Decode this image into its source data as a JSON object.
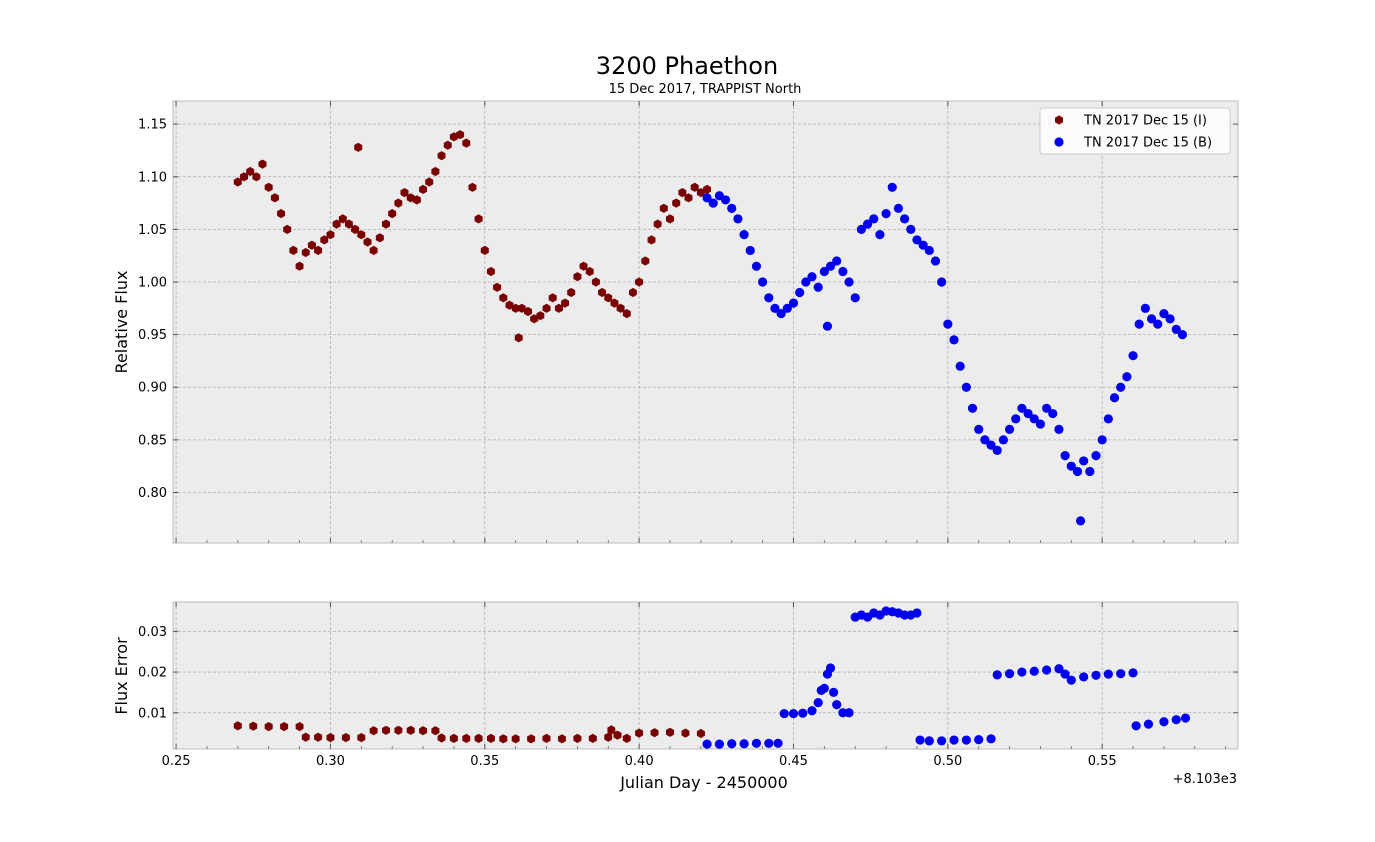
{
  "chart_data": {
    "title": "3200 Phaethon",
    "subtitle": "15 Dec 2017, TRAPPIST North",
    "xlabel": "Julian Day - 2450000",
    "x_offset_label": "+8.103e3",
    "x_offset": 8103,
    "xlim": [
      8103.249,
      8103.594
    ],
    "x_ticks": [
      8103.25,
      8103.3,
      8103.35,
      8103.4,
      8103.45,
      8103.5,
      8103.55
    ],
    "x_tick_labels": [
      "0.25",
      "0.30",
      "0.35",
      "0.40",
      "0.45",
      "0.50",
      "0.55"
    ],
    "grid": true,
    "legend": {
      "placement": "top-right",
      "entries": [
        {
          "label": "TN 2017 Dec 15  (I)",
          "color": "#7a0000",
          "marker": "hexagon"
        },
        {
          "label": "TN 2017 Dec 15  (B)",
          "color": "#0000ee",
          "marker": "circle"
        }
      ]
    },
    "panels": [
      {
        "type": "scatter",
        "ylabel": "Relative  Flux",
        "ylim": [
          0.752,
          1.172
        ],
        "y_ticks": [
          0.8,
          0.85,
          0.9,
          0.95,
          1.0,
          1.05,
          1.1,
          1.15
        ],
        "y_tick_labels": [
          "0.80",
          "0.85",
          "0.90",
          "0.95",
          "1.00",
          "1.05",
          "1.10",
          "1.15"
        ],
        "series": [
          {
            "name": "TN 2017 Dec 15  (I)",
            "color": "#7a0000",
            "marker": "hexagon",
            "x": [
              8103.27,
              8103.272,
              8103.274,
              8103.276,
              8103.278,
              8103.28,
              8103.282,
              8103.284,
              8103.286,
              8103.288,
              8103.29,
              8103.292,
              8103.294,
              8103.296,
              8103.298,
              8103.3,
              8103.302,
              8103.304,
              8103.306,
              8103.308,
              8103.309,
              8103.31,
              8103.312,
              8103.314,
              8103.316,
              8103.318,
              8103.32,
              8103.322,
              8103.324,
              8103.326,
              8103.328,
              8103.33,
              8103.332,
              8103.334,
              8103.336,
              8103.338,
              8103.34,
              8103.342,
              8103.344,
              8103.346,
              8103.348,
              8103.35,
              8103.352,
              8103.354,
              8103.356,
              8103.358,
              8103.36,
              8103.361,
              8103.362,
              8103.364,
              8103.366,
              8103.368,
              8103.37,
              8103.372,
              8103.374,
              8103.376,
              8103.378,
              8103.38,
              8103.382,
              8103.384,
              8103.386,
              8103.388,
              8103.39,
              8103.392,
              8103.394,
              8103.396,
              8103.398,
              8103.4,
              8103.402,
              8103.404,
              8103.406,
              8103.408,
              8103.41,
              8103.412,
              8103.414,
              8103.416,
              8103.418,
              8103.42,
              8103.422
            ],
            "y": [
              1.095,
              1.1,
              1.105,
              1.1,
              1.112,
              1.09,
              1.08,
              1.065,
              1.05,
              1.03,
              1.015,
              1.028,
              1.035,
              1.03,
              1.04,
              1.045,
              1.055,
              1.06,
              1.055,
              1.05,
              1.128,
              1.045,
              1.038,
              1.03,
              1.042,
              1.055,
              1.065,
              1.075,
              1.085,
              1.08,
              1.078,
              1.088,
              1.095,
              1.105,
              1.12,
              1.13,
              1.138,
              1.14,
              1.132,
              1.09,
              1.06,
              1.03,
              1.01,
              0.995,
              0.985,
              0.978,
              0.975,
              0.947,
              0.975,
              0.972,
              0.965,
              0.968,
              0.975,
              0.985,
              0.975,
              0.98,
              0.99,
              1.005,
              1.015,
              1.01,
              1.0,
              0.99,
              0.985,
              0.98,
              0.975,
              0.97,
              0.99,
              1.0,
              1.02,
              1.04,
              1.055,
              1.07,
              1.06,
              1.075,
              1.085,
              1.08,
              1.09,
              1.085,
              1.088
            ]
          },
          {
            "name": "TN 2017 Dec 15  (B)",
            "color": "#0000ee",
            "marker": "circle",
            "x": [
              8103.422,
              8103.424,
              8103.426,
              8103.428,
              8103.43,
              8103.432,
              8103.434,
              8103.436,
              8103.438,
              8103.44,
              8103.442,
              8103.444,
              8103.446,
              8103.448,
              8103.45,
              8103.452,
              8103.454,
              8103.456,
              8103.458,
              8103.46,
              8103.461,
              8103.462,
              8103.464,
              8103.466,
              8103.468,
              8103.47,
              8103.472,
              8103.474,
              8103.476,
              8103.478,
              8103.48,
              8103.482,
              8103.484,
              8103.486,
              8103.488,
              8103.49,
              8103.492,
              8103.494,
              8103.496,
              8103.498,
              8103.5,
              8103.502,
              8103.504,
              8103.506,
              8103.508,
              8103.51,
              8103.512,
              8103.514,
              8103.516,
              8103.518,
              8103.52,
              8103.522,
              8103.524,
              8103.526,
              8103.528,
              8103.53,
              8103.532,
              8103.534,
              8103.536,
              8103.538,
              8103.54,
              8103.542,
              8103.543,
              8103.544,
              8103.546,
              8103.548,
              8103.55,
              8103.552,
              8103.554,
              8103.556,
              8103.558,
              8103.56,
              8103.562,
              8103.564,
              8103.566,
              8103.568,
              8103.57,
              8103.572,
              8103.574,
              8103.576
            ],
            "y": [
              1.08,
              1.075,
              1.082,
              1.078,
              1.07,
              1.06,
              1.045,
              1.03,
              1.015,
              1.0,
              0.985,
              0.975,
              0.97,
              0.975,
              0.98,
              0.99,
              1.0,
              1.005,
              0.995,
              1.01,
              0.958,
              1.015,
              1.02,
              1.01,
              1.0,
              0.985,
              1.05,
              1.055,
              1.06,
              1.045,
              1.065,
              1.09,
              1.07,
              1.06,
              1.05,
              1.04,
              1.035,
              1.03,
              1.02,
              1.0,
              0.96,
              0.945,
              0.92,
              0.9,
              0.88,
              0.86,
              0.85,
              0.845,
              0.84,
              0.85,
              0.86,
              0.87,
              0.88,
              0.875,
              0.87,
              0.865,
              0.88,
              0.875,
              0.86,
              0.835,
              0.825,
              0.82,
              0.773,
              0.83,
              0.82,
              0.835,
              0.85,
              0.87,
              0.89,
              0.9,
              0.91,
              0.93,
              0.96,
              0.975,
              0.965,
              0.96,
              0.97,
              0.965,
              0.955,
              0.95
            ]
          }
        ]
      },
      {
        "type": "scatter",
        "ylabel": "Flux Error",
        "ylim": [
          0.0011,
          0.0372
        ],
        "y_ticks": [
          0.01,
          0.02,
          0.03
        ],
        "y_tick_labels": [
          "0.01",
          "0.02",
          "0.03"
        ],
        "series": [
          {
            "name": "TN 2017 Dec 15  (I)",
            "color": "#7a0000",
            "marker": "hexagon",
            "x": [
              8103.27,
              8103.275,
              8103.28,
              8103.285,
              8103.29,
              8103.292,
              8103.296,
              8103.3,
              8103.305,
              8103.31,
              8103.314,
              8103.318,
              8103.322,
              8103.326,
              8103.33,
              8103.334,
              8103.336,
              8103.34,
              8103.344,
              8103.348,
              8103.352,
              8103.356,
              8103.36,
              8103.365,
              8103.37,
              8103.375,
              8103.38,
              8103.385,
              8103.39,
              8103.391,
              8103.393,
              8103.396,
              8103.4,
              8103.405,
              8103.41,
              8103.415,
              8103.42
            ],
            "y": [
              0.0068,
              0.0067,
              0.0066,
              0.0066,
              0.0066,
              0.004,
              0.004,
              0.0039,
              0.0039,
              0.0039,
              0.0056,
              0.0057,
              0.0057,
              0.0057,
              0.0056,
              0.0056,
              0.0038,
              0.0037,
              0.0037,
              0.0037,
              0.0037,
              0.0036,
              0.0036,
              0.0036,
              0.0037,
              0.0036,
              0.0037,
              0.0037,
              0.004,
              0.0058,
              0.0045,
              0.0037,
              0.005,
              0.0051,
              0.0052,
              0.005,
              0.0049
            ]
          },
          {
            "name": "TN 2017 Dec 15  (B)",
            "color": "#0000ee",
            "marker": "circle",
            "x": [
              8103.422,
              8103.426,
              8103.43,
              8103.434,
              8103.438,
              8103.442,
              8103.445,
              8103.447,
              8103.45,
              8103.453,
              8103.456,
              8103.458,
              8103.459,
              8103.46,
              8103.461,
              8103.462,
              8103.463,
              8103.464,
              8103.466,
              8103.468,
              8103.47,
              8103.472,
              8103.474,
              8103.476,
              8103.478,
              8103.48,
              8103.482,
              8103.484,
              8103.486,
              8103.488,
              8103.49,
              8103.491,
              8103.494,
              8103.498,
              8103.502,
              8103.506,
              8103.51,
              8103.514,
              8103.516,
              8103.52,
              8103.524,
              8103.528,
              8103.532,
              8103.536,
              8103.538,
              8103.54,
              8103.544,
              8103.548,
              8103.552,
              8103.556,
              8103.56,
              8103.561,
              8103.565,
              8103.57,
              8103.574,
              8103.577
            ],
            "y": [
              0.0023,
              0.0023,
              0.0024,
              0.0024,
              0.0025,
              0.0025,
              0.0025,
              0.0098,
              0.0098,
              0.0099,
              0.0105,
              0.0125,
              0.0155,
              0.016,
              0.0195,
              0.021,
              0.015,
              0.012,
              0.01,
              0.01,
              0.0335,
              0.034,
              0.0335,
              0.0345,
              0.034,
              0.035,
              0.0348,
              0.0345,
              0.034,
              0.034,
              0.0345,
              0.0033,
              0.0031,
              0.0031,
              0.0033,
              0.0033,
              0.0034,
              0.0036,
              0.0193,
              0.0196,
              0.02,
              0.0202,
              0.0205,
              0.0208,
              0.0195,
              0.018,
              0.0188,
              0.0192,
              0.0195,
              0.0196,
              0.0198,
              0.0068,
              0.0072,
              0.0078,
              0.0083,
              0.0087
            ]
          }
        ]
      }
    ]
  }
}
